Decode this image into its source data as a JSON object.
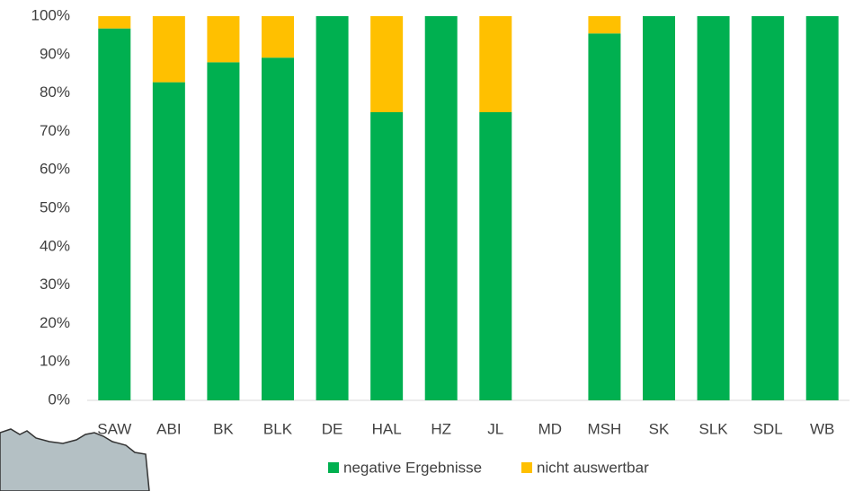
{
  "chart_data": {
    "type": "stacked_bar",
    "categories": [
      "SAW",
      "ABI",
      "BK",
      "BLK",
      "DE",
      "HAL",
      "HZ",
      "JL",
      "MD",
      "MSH",
      "SK",
      "SLK",
      "SDL",
      "WB"
    ],
    "series": [
      {
        "name": "negative Ergebnisse",
        "color": "#00b050",
        "values": [
          96.8,
          82.8,
          88,
          89.2,
          100,
          75,
          100,
          75,
          null,
          95.5,
          100,
          100,
          100,
          100
        ]
      },
      {
        "name": "nicht auswertbar",
        "color": "#ffc000",
        "values": [
          3.2,
          17.2,
          12,
          10.8,
          0,
          25,
          0,
          25,
          null,
          4.5,
          0,
          0,
          0,
          0
        ]
      }
    ],
    "ylim": [
      0,
      100
    ],
    "yticks": [
      {
        "value": 0,
        "label": "0%"
      },
      {
        "value": 10,
        "label": "10%"
      },
      {
        "value": 20,
        "label": "20%"
      },
      {
        "value": 30,
        "label": "30%"
      },
      {
        "value": 40,
        "label": "40%"
      },
      {
        "value": 50,
        "label": "50%"
      },
      {
        "value": 60,
        "label": "60%"
      },
      {
        "value": 70,
        "label": "70%"
      },
      {
        "value": 80,
        "label": "80%"
      },
      {
        "value": 90,
        "label": "90%"
      },
      {
        "value": 100,
        "label": "100%"
      }
    ],
    "grid": false,
    "legend": "bottom"
  }
}
